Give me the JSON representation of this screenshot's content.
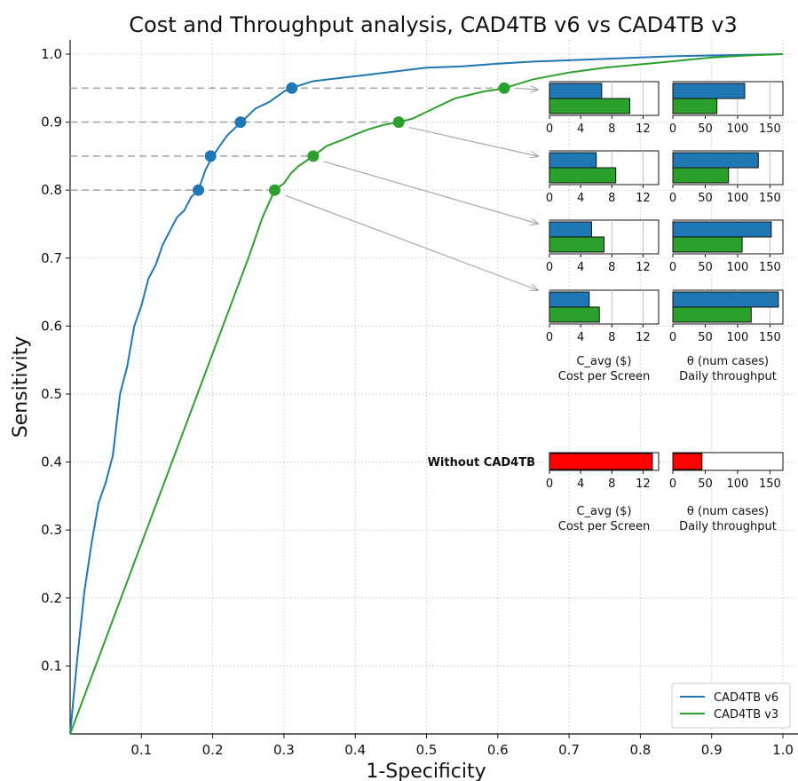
{
  "colors": {
    "v6": "#1f77b4",
    "v3": "#2ca02c",
    "without": "#ff0000",
    "dashed": "#a8a8a8",
    "grid": "#c8c8c8"
  },
  "chart_data": {
    "type": "line",
    "title": "Cost and Throughput analysis, CAD4TB v6 vs CAD4TB v3",
    "xlabel": "1-Specificity",
    "ylabel": "Sensitivity",
    "xlim": [
      0,
      1.02
    ],
    "ylim": [
      0,
      1.02
    ],
    "xticks": [
      "0.1",
      "0.2",
      "0.3",
      "0.4",
      "0.5",
      "0.6",
      "0.7",
      "0.8",
      "0.9",
      "1.0"
    ],
    "yticks": [
      "0.1",
      "0.2",
      "0.3",
      "0.4",
      "0.5",
      "0.6",
      "0.7",
      "0.8",
      "0.9",
      "1.0"
    ],
    "grid": true,
    "legend_position": "bottom-right",
    "series": [
      {
        "name": "CAD4TB v6",
        "x": [
          0,
          0.01,
          0.02,
          0.03,
          0.04,
          0.05,
          0.06,
          0.07,
          0.08,
          0.09,
          0.1,
          0.11,
          0.12,
          0.13,
          0.14,
          0.15,
          0.16,
          0.17,
          0.18,
          0.19,
          0.2,
          0.22,
          0.24,
          0.26,
          0.28,
          0.3,
          0.31,
          0.34,
          0.38,
          0.42,
          0.46,
          0.5,
          0.55,
          0.6,
          0.65,
          0.7,
          0.75,
          0.8,
          0.85,
          0.9,
          0.95,
          1.0
        ],
        "y": [
          0,
          0.11,
          0.21,
          0.28,
          0.34,
          0.37,
          0.41,
          0.5,
          0.54,
          0.6,
          0.63,
          0.67,
          0.69,
          0.72,
          0.74,
          0.76,
          0.77,
          0.79,
          0.8,
          0.83,
          0.85,
          0.88,
          0.9,
          0.92,
          0.93,
          0.945,
          0.95,
          0.96,
          0.965,
          0.97,
          0.975,
          0.98,
          0.982,
          0.986,
          0.989,
          0.991,
          0.993,
          0.995,
          0.997,
          0.998,
          0.999,
          1.0
        ]
      },
      {
        "name": "CAD4TB v3",
        "x": [
          0,
          0.25,
          0.26,
          0.27,
          0.287,
          0.3,
          0.31,
          0.32,
          0.341,
          0.36,
          0.38,
          0.4,
          0.42,
          0.44,
          0.461,
          0.48,
          0.5,
          0.52,
          0.54,
          0.56,
          0.58,
          0.6,
          0.609,
          0.65,
          0.7,
          0.75,
          0.8,
          0.85,
          0.9,
          0.95,
          1.0
        ],
        "y": [
          0,
          0.7,
          0.73,
          0.76,
          0.8,
          0.81,
          0.825,
          0.835,
          0.85,
          0.865,
          0.873,
          0.882,
          0.89,
          0.896,
          0.9,
          0.905,
          0.915,
          0.925,
          0.935,
          0.94,
          0.945,
          0.948,
          0.95,
          0.963,
          0.973,
          0.98,
          0.985,
          0.99,
          0.995,
          0.998,
          1.0
        ]
      }
    ],
    "operating_points": [
      {
        "series": "CAD4TB v6",
        "x": 0.18,
        "y": 0.8
      },
      {
        "series": "CAD4TB v6",
        "x": 0.197,
        "y": 0.85
      },
      {
        "series": "CAD4TB v6",
        "x": 0.239,
        "y": 0.9
      },
      {
        "series": "CAD4TB v6",
        "x": 0.311,
        "y": 0.95
      },
      {
        "series": "CAD4TB v3",
        "x": 0.287,
        "y": 0.8
      },
      {
        "series": "CAD4TB v3",
        "x": 0.341,
        "y": 0.85
      },
      {
        "series": "CAD4TB v3",
        "x": 0.461,
        "y": 0.9
      },
      {
        "series": "CAD4TB v3",
        "x": 0.609,
        "y": 0.95
      }
    ],
    "inset_bars": {
      "cost_axis": {
        "xlim": [
          0,
          14
        ],
        "ticks": [
          "0",
          "4",
          "8",
          "12"
        ]
      },
      "throughput_axis": {
        "xlim": [
          0,
          170
        ],
        "ticks": [
          "0",
          "50",
          "100",
          "150"
        ]
      },
      "groups": [
        {
          "sensitivity": 0.95,
          "cost_v6": 6.7,
          "cost_v3": 10.3,
          "throughput_v6": 111,
          "throughput_v3": 68
        },
        {
          "sensitivity": 0.9,
          "cost_v6": 6.0,
          "cost_v3": 8.5,
          "throughput_v6": 132,
          "throughput_v3": 86
        },
        {
          "sensitivity": 0.85,
          "cost_v6": 5.4,
          "cost_v3": 7.0,
          "throughput_v6": 152,
          "throughput_v3": 107
        },
        {
          "sensitivity": 0.8,
          "cost_v6": 5.1,
          "cost_v3": 6.4,
          "throughput_v6": 163,
          "throughput_v3": 121
        }
      ],
      "without": {
        "label": "Without CAD4TB",
        "cost": 13.2,
        "throughput": 45
      },
      "cost_label_line1": "C_avg ($)",
      "cost_label_line2": "Cost per Screen",
      "throughput_label_line1": "θ (num cases)",
      "throughput_label_line2": "Daily throughput"
    }
  }
}
